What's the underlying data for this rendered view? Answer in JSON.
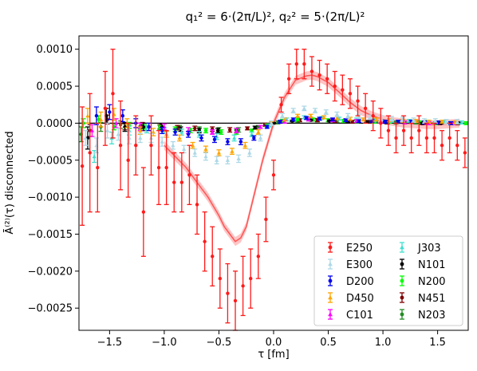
{
  "chart_data": {
    "type": "scatter",
    "title": "q₁² = 6·(2π/L)²,  q₂² = 5·(2π/L)²",
    "xlabel": "τ [fm]",
    "ylabel": "Ā⁽²⁾(τ) disconnected",
    "xlim": [
      -1.78,
      1.78
    ],
    "ylim": [
      -0.0028,
      0.00118
    ],
    "x_ticks": [
      -1.5,
      -1.0,
      -0.5,
      0.0,
      0.5,
      1.0,
      1.5
    ],
    "x_tick_labels": [
      "−1.5",
      "−1.0",
      "−0.5",
      "0.0",
      "0.5",
      "1.0",
      "1.5"
    ],
    "y_ticks": [
      -0.0025,
      -0.002,
      -0.0015,
      -0.001,
      -0.0005,
      0.0,
      0.0005,
      0.001
    ],
    "y_tick_labels": [
      "−0.0025",
      "−0.0020",
      "−0.0015",
      "−0.0010",
      "−0.0005",
      "0.0000",
      "0.0005",
      "0.0010"
    ],
    "grid": false,
    "legend_position": "lower-right",
    "legend_columns": 2,
    "fit_band": {
      "name": "E250",
      "color": "#ff5555",
      "x": [
        -1.0,
        -0.9,
        -0.8,
        -0.7,
        -0.6,
        -0.5,
        -0.45,
        -0.4,
        -0.35,
        -0.3,
        -0.25,
        -0.2,
        -0.1,
        0.0,
        0.1,
        0.2,
        0.3,
        0.35,
        0.4,
        0.5,
        0.6,
        0.7,
        0.8,
        0.9,
        1.0,
        1.1,
        1.2,
        1.3,
        1.4,
        1.5,
        1.6,
        1.7
      ],
      "y": [
        -0.0003,
        -0.00045,
        -0.0006,
        -0.0008,
        -0.001,
        -0.00125,
        -0.0014,
        -0.0015,
        -0.0016,
        -0.00155,
        -0.0014,
        -0.0011,
        -0.0005,
        0.0,
        0.00035,
        0.00058,
        0.00064,
        0.00065,
        0.00063,
        0.00055,
        0.00042,
        0.00028,
        0.00017,
        0.0001,
        5e-05,
        2e-05,
        0.0,
        -1e-05,
        -2e-05,
        -2e-05,
        -1e-05,
        0.0
      ],
      "halfwidth": 6e-05
    },
    "series": [
      {
        "name": "E250",
        "color": "#ff1a1a",
        "marker": "circle",
        "x": [
          -1.75,
          -1.68,
          -1.61,
          -1.54,
          -1.47,
          -1.4,
          -1.33,
          -1.26,
          -1.19,
          -1.12,
          -1.05,
          -0.98,
          -0.91,
          -0.84,
          -0.77,
          -0.7,
          -0.63,
          -0.56,
          -0.49,
          -0.42,
          -0.35,
          -0.28,
          -0.21,
          -0.14,
          -0.07,
          0.0,
          0.07,
          0.14,
          0.21,
          0.28,
          0.35,
          0.42,
          0.49,
          0.56,
          0.63,
          0.7,
          0.77,
          0.84,
          0.91,
          0.98,
          1.05,
          1.12,
          1.19,
          1.26,
          1.33,
          1.4,
          1.47,
          1.54,
          1.61,
          1.68,
          1.75
        ],
        "y": [
          -0.00058,
          -0.0004,
          -0.0006,
          0.0002,
          0.0004,
          -0.0003,
          -0.0005,
          -0.0003,
          -0.0012,
          -0.0003,
          -0.0006,
          -0.0006,
          -0.0008,
          -0.0008,
          -0.0007,
          -0.0011,
          -0.0016,
          -0.0018,
          -0.0021,
          -0.0023,
          -0.0024,
          -0.0022,
          -0.0021,
          -0.0018,
          -0.0013,
          -0.0007,
          0.00025,
          0.0006,
          0.0008,
          0.0008,
          0.0007,
          0.00065,
          0.0006,
          0.0005,
          0.00045,
          0.0004,
          0.0003,
          0.0002,
          0.0001,
          0.0,
          -0.0001,
          -0.0002,
          -0.0001,
          -0.0002,
          -0.0001,
          -0.0002,
          -0.0002,
          -0.0003,
          -0.0002,
          -0.0003,
          -0.0004
        ],
        "err": [
          0.0008,
          0.0008,
          0.0006,
          0.0005,
          0.0006,
          0.0006,
          0.0005,
          0.0004,
          0.0006,
          0.0004,
          0.0005,
          0.0005,
          0.0004,
          0.0004,
          0.0004,
          0.0004,
          0.0004,
          0.0004,
          0.0004,
          0.0004,
          0.0004,
          0.0004,
          0.0004,
          0.0003,
          0.0003,
          0.0002,
          0.0001,
          0.0002,
          0.0002,
          0.0002,
          0.0002,
          0.0002,
          0.0002,
          0.0002,
          0.0002,
          0.0002,
          0.0002,
          0.0002,
          0.0002,
          0.0002,
          0.0002,
          0.0002,
          0.0002,
          0.0002,
          0.0002,
          0.0002,
          0.0002,
          0.0002,
          0.0002,
          0.0002,
          0.0002
        ]
      },
      {
        "name": "E300",
        "color": "#add8e6",
        "marker": "triangle",
        "x": [
          -1.72,
          -1.62,
          -1.52,
          -1.42,
          -1.32,
          -1.22,
          -1.12,
          -1.02,
          -0.92,
          -0.82,
          -0.72,
          -0.62,
          -0.52,
          -0.42,
          -0.32,
          -0.22,
          -0.12,
          -0.02,
          0.08,
          0.18,
          0.28,
          0.38,
          0.48,
          0.58,
          0.68,
          0.78,
          0.88,
          0.98,
          1.08,
          1.18,
          1.28,
          1.38,
          1.48,
          1.58,
          1.68
        ],
        "y": [
          -0.0002,
          -0.0003,
          -0.0001,
          -0.00015,
          -0.0002,
          -0.0002,
          -0.0002,
          -0.00025,
          -0.0003,
          -0.00035,
          -0.0004,
          -0.00045,
          -0.0005,
          -0.0005,
          -0.00048,
          -0.0004,
          -0.0002,
          0.0,
          0.0001,
          0.00017,
          0.0002,
          0.00017,
          0.00015,
          0.00012,
          0.0001,
          9e-05,
          8e-05,
          7e-05,
          6e-05,
          5e-05,
          4e-05,
          3e-05,
          3e-05,
          2e-05,
          2e-05
        ],
        "err": [
          0.0001,
          0.0001,
          0.0001,
          8e-05,
          8e-05,
          6e-05,
          6e-05,
          6e-05,
          5e-05,
          5e-05,
          5e-05,
          5e-05,
          5e-05,
          5e-05,
          5e-05,
          5e-05,
          4e-05,
          3e-05,
          3e-05,
          3e-05,
          3e-05,
          3e-05,
          3e-05,
          3e-05,
          3e-05,
          3e-05,
          3e-05,
          3e-05,
          3e-05,
          3e-05,
          3e-05,
          3e-05,
          3e-05,
          3e-05,
          3e-05
        ]
      },
      {
        "name": "D200",
        "color": "#0000ee",
        "marker": "circle",
        "x": [
          -1.62,
          -1.5,
          -1.38,
          -1.26,
          -1.14,
          -1.02,
          -0.9,
          -0.78,
          -0.66,
          -0.54,
          -0.42,
          -0.3,
          -0.18,
          -0.06,
          0.06,
          0.18,
          0.3,
          0.42,
          0.54,
          0.66,
          0.78,
          0.9,
          1.02,
          1.14,
          1.26,
          1.38,
          1.5,
          1.62
        ],
        "y": [
          0.0001,
          0.00015,
          0.0001,
          0.0,
          -5e-05,
          -0.0001,
          -0.00012,
          -0.00015,
          -0.0002,
          -0.00022,
          -0.00025,
          -0.00025,
          -0.0002,
          -5e-05,
          2e-05,
          5e-05,
          7e-05,
          6e-05,
          5e-05,
          4e-05,
          3e-05,
          3e-05,
          2e-05,
          2e-05,
          2e-05,
          1e-05,
          1e-05,
          0.0
        ],
        "err": [
          0.00012,
          0.0001,
          8e-05,
          6e-05,
          5e-05,
          4e-05,
          4e-05,
          4e-05,
          4e-05,
          4e-05,
          4e-05,
          4e-05,
          3e-05,
          2e-05,
          2e-05,
          2e-05,
          2e-05,
          2e-05,
          2e-05,
          2e-05,
          2e-05,
          2e-05,
          2e-05,
          2e-05,
          2e-05,
          2e-05,
          2e-05,
          2e-05
        ]
      },
      {
        "name": "D450",
        "color": "#ffa500",
        "marker": "triangle",
        "x": [
          -1.7,
          -1.58,
          -1.46,
          -1.34,
          -1.22,
          -1.1,
          -0.98,
          -0.86,
          -0.74,
          -0.62,
          -0.5,
          -0.38,
          -0.26,
          -0.14,
          -0.02,
          0.1,
          0.22,
          0.34,
          0.46,
          0.58,
          0.7,
          0.82,
          0.94,
          1.06,
          1.18,
          1.3,
          1.42,
          1.54,
          1.66
        ],
        "y": [
          0.0001,
          5e-05,
          0.00012,
          0.0,
          -0.0001,
          -0.00012,
          -0.00015,
          -0.0002,
          -0.0003,
          -0.00035,
          -0.0004,
          -0.00038,
          -0.0003,
          -0.00012,
          0.0,
          5e-05,
          0.0001,
          0.0001,
          8e-05,
          7e-05,
          6e-05,
          5e-05,
          5e-05,
          4e-05,
          3e-05,
          3e-05,
          2e-05,
          2e-05,
          1e-05
        ],
        "err": [
          0.0001,
          0.0001,
          8e-05,
          6e-05,
          5e-05,
          5e-05,
          4e-05,
          4e-05,
          4e-05,
          4e-05,
          4e-05,
          4e-05,
          4e-05,
          3e-05,
          2e-05,
          2e-05,
          2e-05,
          2e-05,
          2e-05,
          2e-05,
          2e-05,
          2e-05,
          2e-05,
          2e-05,
          2e-05,
          2e-05,
          2e-05,
          2e-05,
          2e-05
        ]
      },
      {
        "name": "C101",
        "color": "#ff00ff",
        "marker": "triangle",
        "x": [
          -1.66,
          -1.44,
          -1.22,
          -1.0,
          -0.78,
          -0.56,
          -0.34,
          -0.12,
          0.1,
          0.32,
          0.54,
          0.76,
          0.98,
          1.2,
          1.42,
          1.64
        ],
        "y": [
          -0.0001,
          0.0,
          -5e-05,
          -5e-05,
          -0.0001,
          -0.00012,
          -0.0001,
          -5e-05,
          2e-05,
          5e-05,
          4e-05,
          3e-05,
          2e-05,
          1e-05,
          0.0,
          0.0
        ],
        "err": [
          8e-05,
          6e-05,
          5e-05,
          4e-05,
          4e-05,
          3e-05,
          3e-05,
          2e-05,
          2e-05,
          2e-05,
          2e-05,
          2e-05,
          2e-05,
          2e-05,
          2e-05,
          2e-05
        ]
      },
      {
        "name": "J303",
        "color": "#40e0d0",
        "marker": "triangle",
        "x": [
          -1.64,
          -1.48,
          -1.32,
          -1.16,
          -1.0,
          -0.84,
          -0.68,
          -0.52,
          -0.36,
          -0.2,
          -0.04,
          0.12,
          0.28,
          0.44,
          0.6,
          0.76,
          0.92,
          1.08,
          1.24,
          1.4,
          1.56,
          1.72
        ],
        "y": [
          -0.00045,
          -0.0002,
          -0.0001,
          -8e-05,
          -0.0001,
          -0.00012,
          -0.00015,
          -0.00018,
          -0.0002,
          -0.00015,
          -3e-05,
          5e-05,
          8e-05,
          7e-05,
          6e-05,
          5e-05,
          4e-05,
          3e-05,
          3e-05,
          2e-05,
          2e-05,
          1e-05
        ],
        "err": [
          8e-05,
          8e-05,
          6e-05,
          5e-05,
          4e-05,
          4e-05,
          4e-05,
          4e-05,
          4e-05,
          3e-05,
          2e-05,
          2e-05,
          2e-05,
          2e-05,
          2e-05,
          2e-05,
          2e-05,
          2e-05,
          2e-05,
          2e-05,
          2e-05,
          2e-05
        ]
      },
      {
        "name": "N101",
        "color": "#000000",
        "marker": "circle",
        "x": [
          -1.7,
          -1.53,
          -1.36,
          -1.19,
          -1.02,
          -0.85,
          -0.68,
          -0.51,
          -0.34,
          -0.17,
          0.0,
          0.17,
          0.34,
          0.51,
          0.68,
          0.85,
          1.02,
          1.19,
          1.36,
          1.53,
          1.7
        ],
        "y": [
          -0.0002,
          0.0001,
          -5e-05,
          -5e-05,
          -5e-05,
          -8e-05,
          -0.0001,
          -0.0001,
          -0.0001,
          -6e-05,
          0.0,
          3e-05,
          4e-05,
          3e-05,
          2e-05,
          2e-05,
          1e-05,
          1e-05,
          0.0,
          0.0,
          0.0
        ],
        "err": [
          0.00015,
          0.0001,
          6e-05,
          5e-05,
          4e-05,
          3e-05,
          3e-05,
          3e-05,
          3e-05,
          2e-05,
          1e-05,
          1e-05,
          1e-05,
          1e-05,
          1e-05,
          1e-05,
          1e-05,
          1e-05,
          1e-05,
          1e-05,
          1e-05
        ]
      },
      {
        "name": "N200",
        "color": "#00ff00",
        "marker": "circle",
        "x": [
          -1.74,
          -1.6,
          -1.46,
          -1.32,
          -1.18,
          -1.04,
          -0.9,
          -0.76,
          -0.62,
          -0.48,
          -0.34,
          -0.2,
          -0.06,
          0.08,
          0.22,
          0.36,
          0.5,
          0.64,
          0.78,
          0.92,
          1.06,
          1.2,
          1.34,
          1.48,
          1.62,
          1.76
        ],
        "y": [
          0.0,
          5e-05,
          -5e-05,
          -3e-05,
          -5e-05,
          -6e-05,
          -8e-05,
          -0.0001,
          -0.0001,
          -0.00012,
          -0.00012,
          -0.0001,
          -3e-05,
          3e-05,
          5e-05,
          5e-05,
          4e-05,
          3e-05,
          3e-05,
          2e-05,
          2e-05,
          1e-05,
          1e-05,
          0.0,
          0.0,
          0.0
        ],
        "err": [
          6e-05,
          5e-05,
          4e-05,
          4e-05,
          3e-05,
          3e-05,
          3e-05,
          3e-05,
          3e-05,
          3e-05,
          3e-05,
          2e-05,
          2e-05,
          2e-05,
          2e-05,
          2e-05,
          2e-05,
          2e-05,
          2e-05,
          2e-05,
          2e-05,
          2e-05,
          2e-05,
          2e-05,
          2e-05,
          2e-05
        ]
      },
      {
        "name": "N451",
        "color": "#800000",
        "marker": "circle",
        "x": [
          -1.68,
          -1.52,
          -1.36,
          -1.2,
          -1.04,
          -0.88,
          -0.72,
          -0.56,
          -0.4,
          -0.24,
          -0.08,
          0.08,
          0.24,
          0.4,
          0.56,
          0.72,
          0.88,
          1.04,
          1.2,
          1.36,
          1.52,
          1.68
        ],
        "y": [
          -0.0001,
          5e-05,
          -5e-05,
          -3e-05,
          -5e-05,
          -6e-05,
          -7e-05,
          -8e-05,
          -9e-05,
          -7e-05,
          -2e-05,
          2e-05,
          4e-05,
          4e-05,
          3e-05,
          2e-05,
          2e-05,
          1e-05,
          1e-05,
          0.0,
          0.0,
          0.0
        ],
        "err": [
          8e-05,
          6e-05,
          4e-05,
          4e-05,
          3e-05,
          3e-05,
          3e-05,
          3e-05,
          3e-05,
          2e-05,
          2e-05,
          2e-05,
          2e-05,
          2e-05,
          2e-05,
          2e-05,
          2e-05,
          2e-05,
          2e-05,
          2e-05,
          2e-05,
          2e-05
        ]
      },
      {
        "name": "N203",
        "color": "#228b22",
        "marker": "circle",
        "x": [
          -1.76,
          -1.58,
          -1.4,
          -1.22,
          -1.04,
          -0.86,
          -0.68,
          -0.5,
          -0.32,
          -0.14,
          0.04,
          0.22,
          0.4,
          0.58,
          0.76,
          0.94,
          1.12,
          1.3,
          1.48,
          1.66
        ],
        "y": [
          -0.00015,
          -5e-05,
          -2e-05,
          -4e-05,
          -5e-05,
          -6e-05,
          -8e-05,
          -9e-05,
          -9e-05,
          -5e-05,
          1e-05,
          3e-05,
          4e-05,
          3e-05,
          2e-05,
          2e-05,
          1e-05,
          1e-05,
          0.0,
          0.0
        ],
        "err": [
          0.0001,
          6e-05,
          5e-05,
          4e-05,
          3e-05,
          3e-05,
          3e-05,
          3e-05,
          3e-05,
          2e-05,
          2e-05,
          2e-05,
          2e-05,
          2e-05,
          2e-05,
          2e-05,
          2e-05,
          2e-05,
          2e-05,
          2e-05
        ]
      }
    ]
  }
}
